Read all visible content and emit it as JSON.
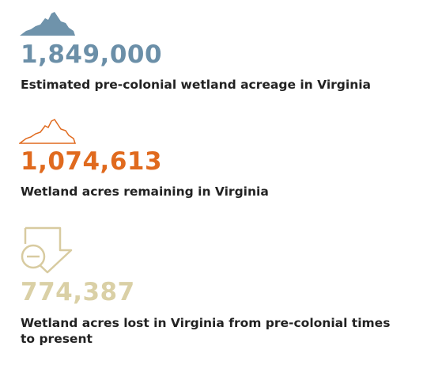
{
  "stats": [
    {
      "value": "1,849,000",
      "label": "Estimated pre-colonial wetland acreage in Virginia"
    },
    {
      "value": "1,074,613",
      "label": "Wetland acres remaining in Virginia"
    },
    {
      "value": "774,387",
      "label": "Wetland acres lost in Virginia from pre-colonial times to present"
    }
  ]
}
